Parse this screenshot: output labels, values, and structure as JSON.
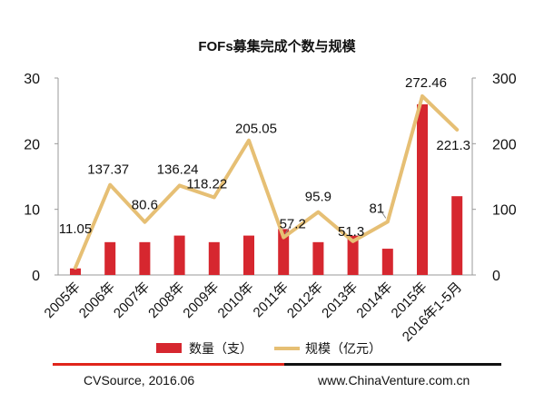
{
  "colors": {
    "bar": "#d6272f",
    "line": "#e6bf74",
    "text": "#111111",
    "axis": "#999999"
  },
  "chart_data": {
    "type": "bar",
    "title": "FOFs募集完成个数与规模",
    "categories": [
      "2005年",
      "2006年",
      "2007年",
      "2008年",
      "2009年",
      "2010年",
      "2011年",
      "2012年",
      "2013年",
      "2014年",
      "2015年",
      "2016年1-5月"
    ],
    "series": [
      {
        "name": "数量（支）",
        "type": "bar",
        "axis": "left",
        "values": [
          1,
          5,
          5,
          6,
          5,
          6,
          7,
          5,
          6,
          4,
          26,
          12
        ]
      },
      {
        "name": "规模（亿元）",
        "type": "line",
        "axis": "right",
        "values": [
          11.05,
          137.37,
          80.6,
          136.24,
          118.22,
          205.05,
          57.2,
          95.9,
          51.3,
          81,
          272.46,
          221.3
        ]
      }
    ],
    "data_labels": [
      "11.05",
      "137.37",
      "80.6",
      "136.24",
      "118.22",
      "205.05",
      "57.2",
      "95.9",
      "51.3",
      "81",
      "272.46",
      "221.3"
    ],
    "left_axis": {
      "ylim": [
        0,
        30
      ],
      "ticks": [
        "0",
        "10",
        "20",
        "30"
      ]
    },
    "right_axis": {
      "ylim": [
        0,
        300
      ],
      "ticks": [
        "0",
        "100",
        "200",
        "300"
      ]
    },
    "legend": {
      "position": "bottom",
      "items": [
        "数量（支）",
        "规模（亿元）"
      ]
    },
    "grid": false
  },
  "footer": {
    "source": "CVSource, 2016.06",
    "website": "www.ChinaVenture.com.cn"
  }
}
